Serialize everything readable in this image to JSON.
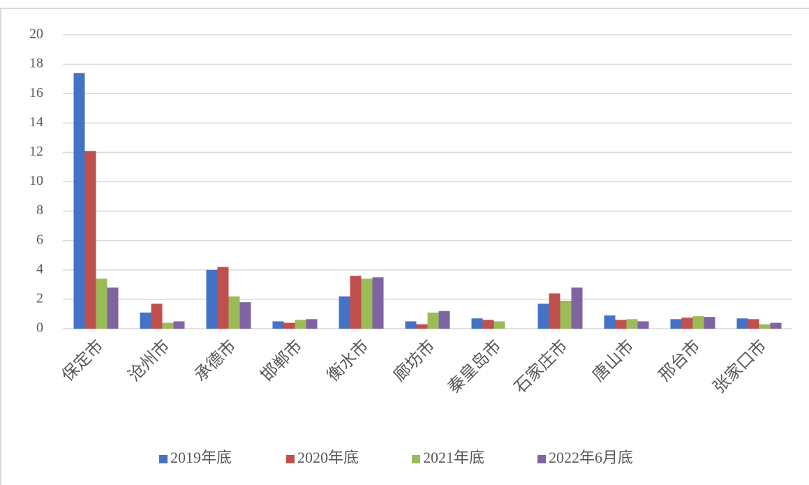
{
  "chart_data": {
    "type": "bar",
    "categories": [
      "保定市",
      "沧州市",
      "承德市",
      "邯郸市",
      "衡水市",
      "廊坊市",
      "秦皇岛市",
      "石家庄市",
      "唐山市",
      "邢台市",
      "张家口市"
    ],
    "series": [
      {
        "name": "2019年底",
        "color": "#4472c4",
        "values": [
          17.4,
          1.1,
          4.0,
          0.5,
          2.2,
          0.5,
          0.7,
          1.7,
          0.9,
          0.65,
          0.7
        ]
      },
      {
        "name": "2020年底",
        "color": "#c0504d",
        "values": [
          12.1,
          1.7,
          4.2,
          0.4,
          3.6,
          0.3,
          0.6,
          2.4,
          0.6,
          0.75,
          0.65
        ]
      },
      {
        "name": "2021年底",
        "color": "#9bbb59",
        "values": [
          3.4,
          0.4,
          2.2,
          0.6,
          3.4,
          1.1,
          0.5,
          1.9,
          0.65,
          0.85,
          0.3
        ]
      },
      {
        "name": "2022年6月底",
        "color": "#8064a2",
        "values": [
          2.8,
          0.5,
          1.8,
          0.65,
          3.5,
          1.2,
          null,
          2.8,
          0.5,
          0.8,
          0.4
        ]
      }
    ],
    "ylim": [
      0,
      20
    ],
    "yticks": [
      0,
      2,
      4,
      6,
      8,
      10,
      12,
      14,
      16,
      18,
      20
    ],
    "grid": true,
    "legend": "bottom"
  }
}
